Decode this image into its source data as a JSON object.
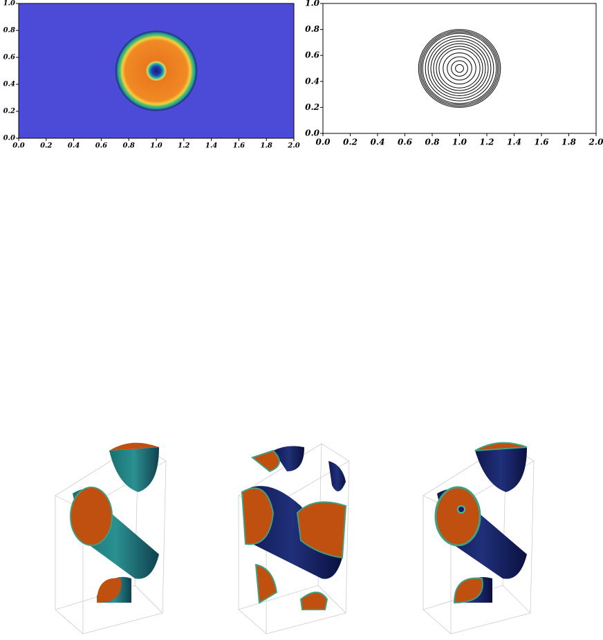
{
  "chart_data": [
    {
      "type": "heatmap",
      "background_color": "#4b4bd8",
      "center": [
        1.0,
        0.5
      ],
      "radius": 0.3,
      "inner_radius": 0.03,
      "xlim": [
        0,
        2
      ],
      "ylim": [
        0,
        1
      ],
      "xticks": [
        {
          "value": 0,
          "label": "0.0"
        },
        {
          "value": 0.2,
          "label": "0.2"
        },
        {
          "value": 0.4,
          "label": "0.4"
        },
        {
          "value": 0.6,
          "label": "0.6"
        },
        {
          "value": 0.8,
          "label": "0.8"
        },
        {
          "value": 1,
          "label": "1.0"
        },
        {
          "value": 1.2,
          "label": "1.2"
        },
        {
          "value": 1.4,
          "label": "1.4"
        },
        {
          "value": 1.6,
          "label": "1.6"
        },
        {
          "value": 1.8,
          "label": "1.8"
        },
        {
          "value": 2,
          "label": "2.0"
        }
      ],
      "yticks": [
        {
          "value": 0,
          "label": "0.0"
        },
        {
          "value": 0.2,
          "label": "0.2"
        },
        {
          "value": 0.4,
          "label": "0.4"
        },
        {
          "value": 0.6,
          "label": "0.6"
        },
        {
          "value": 0.8,
          "label": "0.8"
        },
        {
          "value": 1,
          "label": "1.0"
        }
      ]
    },
    {
      "type": "contour",
      "color": "#000000",
      "center": [
        1.0,
        0.5
      ],
      "radii": [
        0.03,
        0.06,
        0.09,
        0.12,
        0.15,
        0.17,
        0.19,
        0.21,
        0.23,
        0.25,
        0.27,
        0.28,
        0.29,
        0.3
      ],
      "xlim": [
        0,
        2
      ],
      "ylim": [
        0,
        1
      ],
      "xticks": [
        {
          "value": 0,
          "label": "0.0"
        },
        {
          "value": 0.2,
          "label": "0.2"
        },
        {
          "value": 0.4,
          "label": "0.4"
        },
        {
          "value": 0.6,
          "label": "0.6"
        },
        {
          "value": 0.8,
          "label": "0.8"
        },
        {
          "value": 1,
          "label": "1.0"
        },
        {
          "value": 1.2,
          "label": "1.2"
        },
        {
          "value": 1.4,
          "label": "1.4"
        },
        {
          "value": 1.6,
          "label": "1.6"
        },
        {
          "value": 1.8,
          "label": "1.8"
        },
        {
          "value": 2,
          "label": "2.0"
        }
      ],
      "yticks": [
        {
          "value": 0,
          "label": "0.0"
        },
        {
          "value": 0.2,
          "label": "0.2"
        },
        {
          "value": 0.4,
          "label": "0.4"
        },
        {
          "value": 0.6,
          "label": "0.6"
        },
        {
          "value": 0.8,
          "label": "0.8"
        },
        {
          "value": 1,
          "label": "1.0"
        }
      ]
    }
  ]
}
